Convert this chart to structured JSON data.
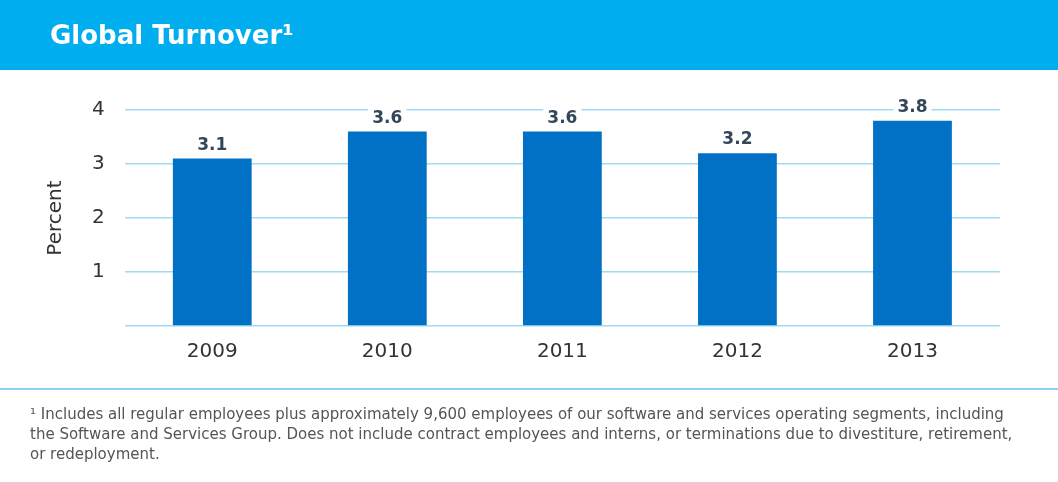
{
  "chart_data": {
    "type": "bar",
    "title": "Global Turnover¹",
    "categories": [
      "2009",
      "2010",
      "2011",
      "2012",
      "2013"
    ],
    "values": [
      3.1,
      3.6,
      3.6,
      3.2,
      3.8
    ],
    "color": "#0071c5",
    "ylabel": "Percent",
    "ylim": [
      0,
      4
    ],
    "yticks": [
      {
        "value": 0,
        "label": null
      },
      1,
      2,
      3,
      4
    ],
    "grid": "y",
    "data_labels": true,
    "annotations": [
      "¹ Includes all regular employees plus approximately 9,600 employees of our software and services operating segments, including the Software and Services Group. Does not include contract employees and interns, or terminations due to divestiture, retirement, or redeployment."
    ]
  }
}
